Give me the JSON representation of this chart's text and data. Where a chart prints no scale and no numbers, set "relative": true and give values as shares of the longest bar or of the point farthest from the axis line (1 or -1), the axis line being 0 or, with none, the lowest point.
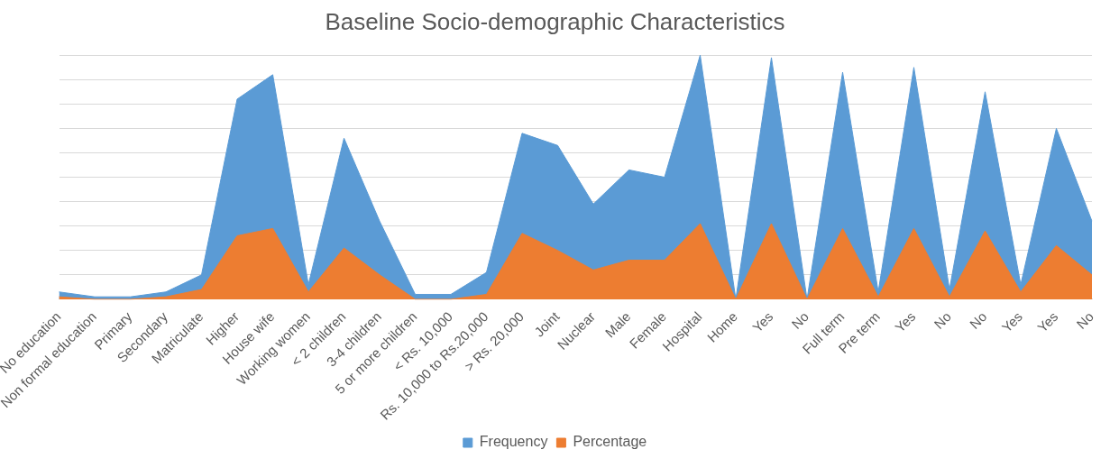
{
  "chart_data": {
    "type": "area",
    "title": "Baseline Socio-demographic Characteristics",
    "relative": true,
    "grid": "y",
    "legend": "bottom",
    "marker": "none",
    "categories": [
      "No education",
      "Non formal education",
      "Primary",
      "Secondary",
      "Matriculate",
      "Higher",
      "House wife",
      "Working women",
      "< 2 children",
      "3-4 children",
      "5 or more children",
      "< Rs. 10,000",
      "Rs. 10,000 to Rs.20,000",
      "> Rs. 20,000",
      "Joint",
      "Nuclear",
      "Male",
      "Female",
      "Hospital",
      "Home",
      "Yes",
      "No",
      "Full term",
      "Pre term",
      "Yes",
      "No",
      "No",
      "Yes",
      "Yes",
      "No"
    ],
    "series": [
      {
        "name": "Frequency",
        "color": "#5b9bd5",
        "values": [
          0.03,
          0.01,
          0.01,
          0.03,
          0.1,
          0.82,
          0.92,
          0.06,
          0.66,
          0.32,
          0.02,
          0.02,
          0.11,
          0.68,
          0.63,
          0.39,
          0.53,
          0.5,
          1,
          0,
          0.99,
          0,
          0.93,
          0.03,
          0.95,
          0.04,
          0.85,
          0.06,
          0.7,
          0.32
        ]
      },
      {
        "name": "Percentage",
        "color": "#ed7d31",
        "values": [
          0.01,
          0,
          0,
          0.01,
          0.04,
          0.26,
          0.29,
          0.03,
          0.21,
          0.1,
          0,
          0,
          0.02,
          0.27,
          0.2,
          0.12,
          0.16,
          0.16,
          0.31,
          0,
          0.31,
          0,
          0.29,
          0.01,
          0.29,
          0.01,
          0.28,
          0.03,
          0.22,
          0.1
        ]
      }
    ]
  }
}
